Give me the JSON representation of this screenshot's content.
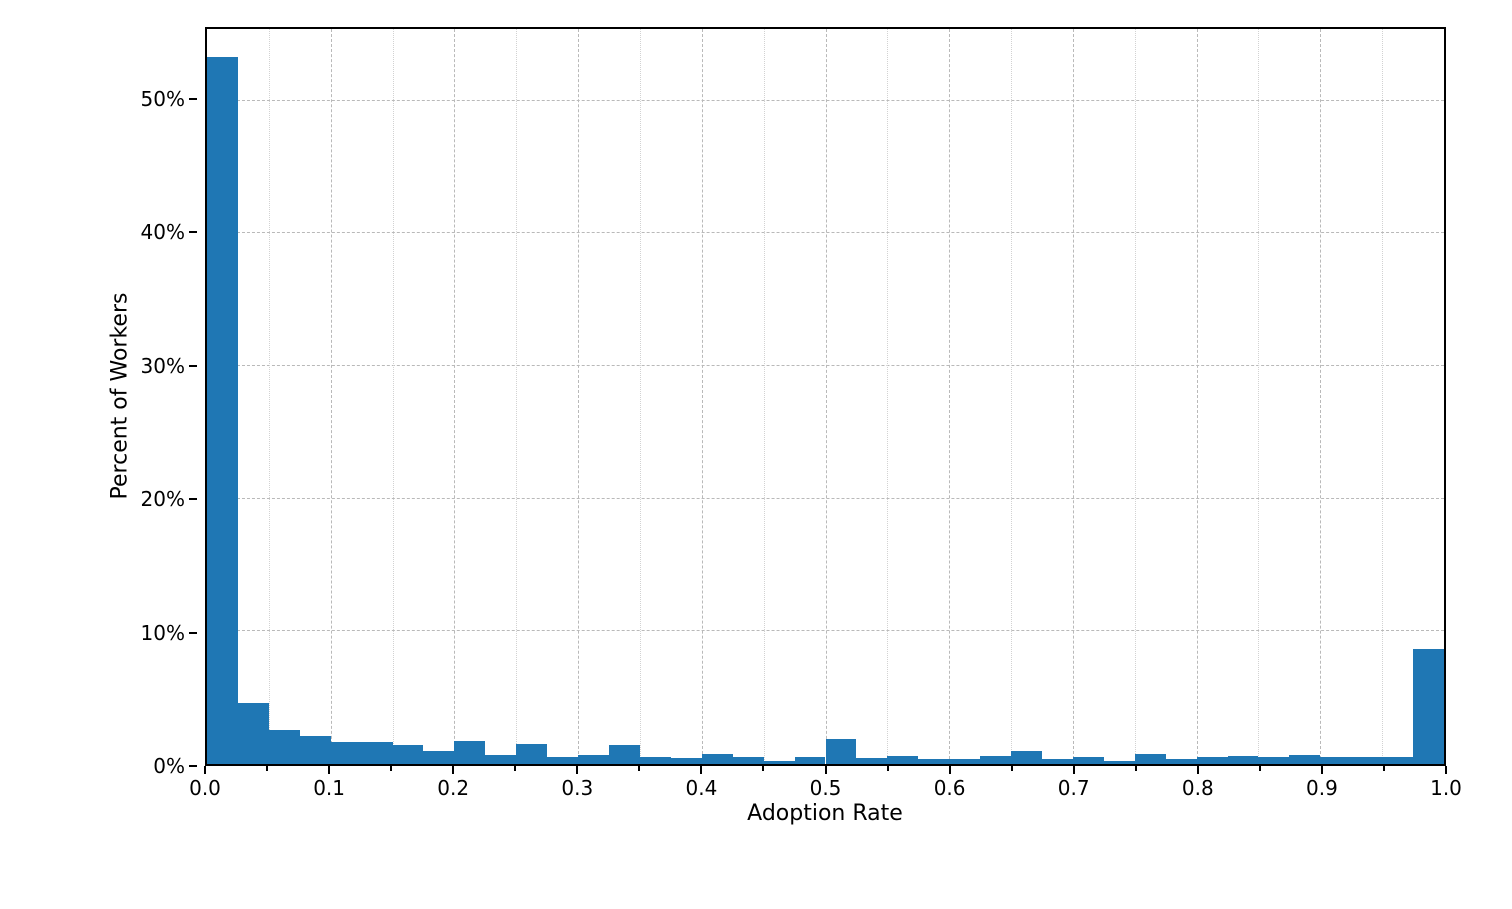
{
  "chart_data": {
    "type": "bar",
    "subtype": "histogram",
    "title": "",
    "xlabel": "Adoption Rate",
    "ylabel": "Percent of Workers",
    "xlim": [
      0.0,
      1.0
    ],
    "ylim": [
      0,
      55.4
    ],
    "bin_width": 0.025,
    "bin_starts": [
      0.0,
      0.025,
      0.05,
      0.075,
      0.1,
      0.125,
      0.15,
      0.175,
      0.2,
      0.225,
      0.25,
      0.275,
      0.3,
      0.325,
      0.35,
      0.375,
      0.4,
      0.425,
      0.45,
      0.475,
      0.5,
      0.525,
      0.55,
      0.575,
      0.6,
      0.625,
      0.65,
      0.675,
      0.7,
      0.725,
      0.75,
      0.775,
      0.8,
      0.825,
      0.85,
      0.875,
      0.9,
      0.925,
      0.95,
      0.975
    ],
    "values_percent": [
      53.3,
      4.6,
      2.6,
      2.1,
      1.65,
      1.65,
      1.4,
      1.0,
      1.7,
      0.7,
      1.5,
      0.55,
      0.65,
      1.45,
      0.55,
      0.45,
      0.75,
      0.55,
      0.25,
      0.5,
      1.9,
      0.45,
      0.6,
      0.35,
      0.4,
      0.6,
      0.95,
      0.4,
      0.5,
      0.2,
      0.75,
      0.4,
      0.55,
      0.6,
      0.5,
      0.65,
      0.55,
      0.55,
      0.55,
      8.65
    ],
    "x_tick_labels": [
      "0.0",
      "0.1",
      "0.2",
      "0.3",
      "0.4",
      "0.5",
      "0.6",
      "0.7",
      "0.8",
      "0.9",
      "1.0"
    ],
    "x_tick_values": [
      0.0,
      0.1,
      0.2,
      0.3,
      0.4,
      0.5,
      0.6,
      0.7,
      0.8,
      0.9,
      1.0
    ],
    "x_minor_tick_values": [
      0.05,
      0.15,
      0.25,
      0.35,
      0.45,
      0.55,
      0.65,
      0.75,
      0.85,
      0.95
    ],
    "y_tick_labels": [
      "0%",
      "10%",
      "20%",
      "30%",
      "40%",
      "50%"
    ],
    "y_tick_values": [
      0,
      10,
      20,
      30,
      40,
      50
    ],
    "grid": {
      "major": "dashed",
      "minor_x": "dotted",
      "legend": "none"
    },
    "colors": {
      "bar": "#1f77b4",
      "grid_major": "#b9b9b9",
      "grid_minor": "#d2d2d2",
      "spine": "#000000",
      "text": "#000000",
      "background": "#ffffff"
    }
  }
}
